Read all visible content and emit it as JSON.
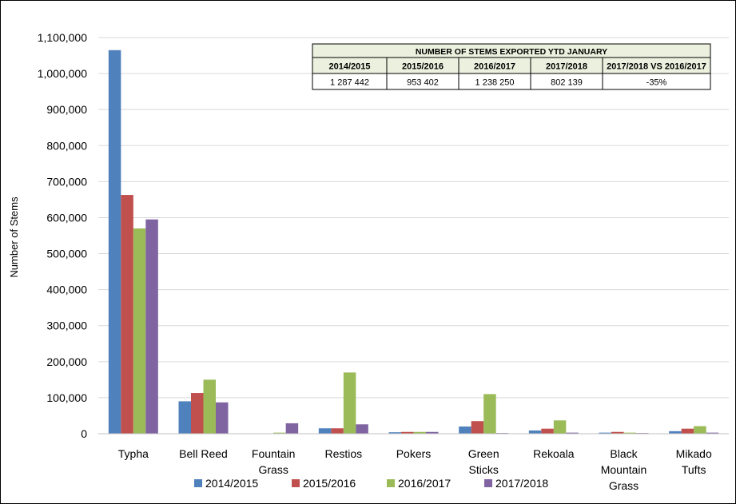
{
  "chart_data": {
    "type": "bar",
    "title": "",
    "xlabel": "",
    "ylabel": "Number of Stems",
    "ylim": [
      0,
      1100000
    ],
    "ytick_step": 100000,
    "grid": true,
    "legend_position": "bottom",
    "categories": [
      [
        "Typha"
      ],
      [
        "Bell Reed"
      ],
      [
        "Fountain",
        "Grass"
      ],
      [
        "Restios"
      ],
      [
        "Pokers"
      ],
      [
        "Green",
        "Sticks"
      ],
      [
        "Rekoala"
      ],
      [
        "Black",
        "Mountain",
        "Grass"
      ],
      [
        "Mikado",
        "Tufts"
      ]
    ],
    "series": [
      {
        "name": "2014/2015",
        "color": "#4f81bd",
        "values": [
          1065000,
          90000,
          0,
          15000,
          4000,
          20000,
          9000,
          3000,
          7000
        ]
      },
      {
        "name": "2015/2016",
        "color": "#c0504d",
        "values": [
          663000,
          113000,
          0,
          15000,
          5000,
          35000,
          14000,
          5000,
          14000
        ]
      },
      {
        "name": "2016/2017",
        "color": "#9bbb59",
        "values": [
          570000,
          150000,
          3000,
          170000,
          5000,
          110000,
          37000,
          3000,
          21000
        ]
      },
      {
        "name": "2017/2018",
        "color": "#8064a2",
        "values": [
          595000,
          87000,
          29000,
          26000,
          5000,
          2000,
          3000,
          2000,
          3000
        ]
      }
    ],
    "table": {
      "title": "NUMBER OF STEMS EXPORTED YTD JANUARY",
      "header_bg": "#ebf1de",
      "headers": [
        "2014/2015",
        "2015/2016",
        "2016/2017",
        "2017/2018",
        "2017/2018 VS 2016/2017"
      ],
      "values": [
        "1 287 442",
        "953 402",
        "1 238 250",
        "802 139",
        "-35%"
      ]
    }
  }
}
